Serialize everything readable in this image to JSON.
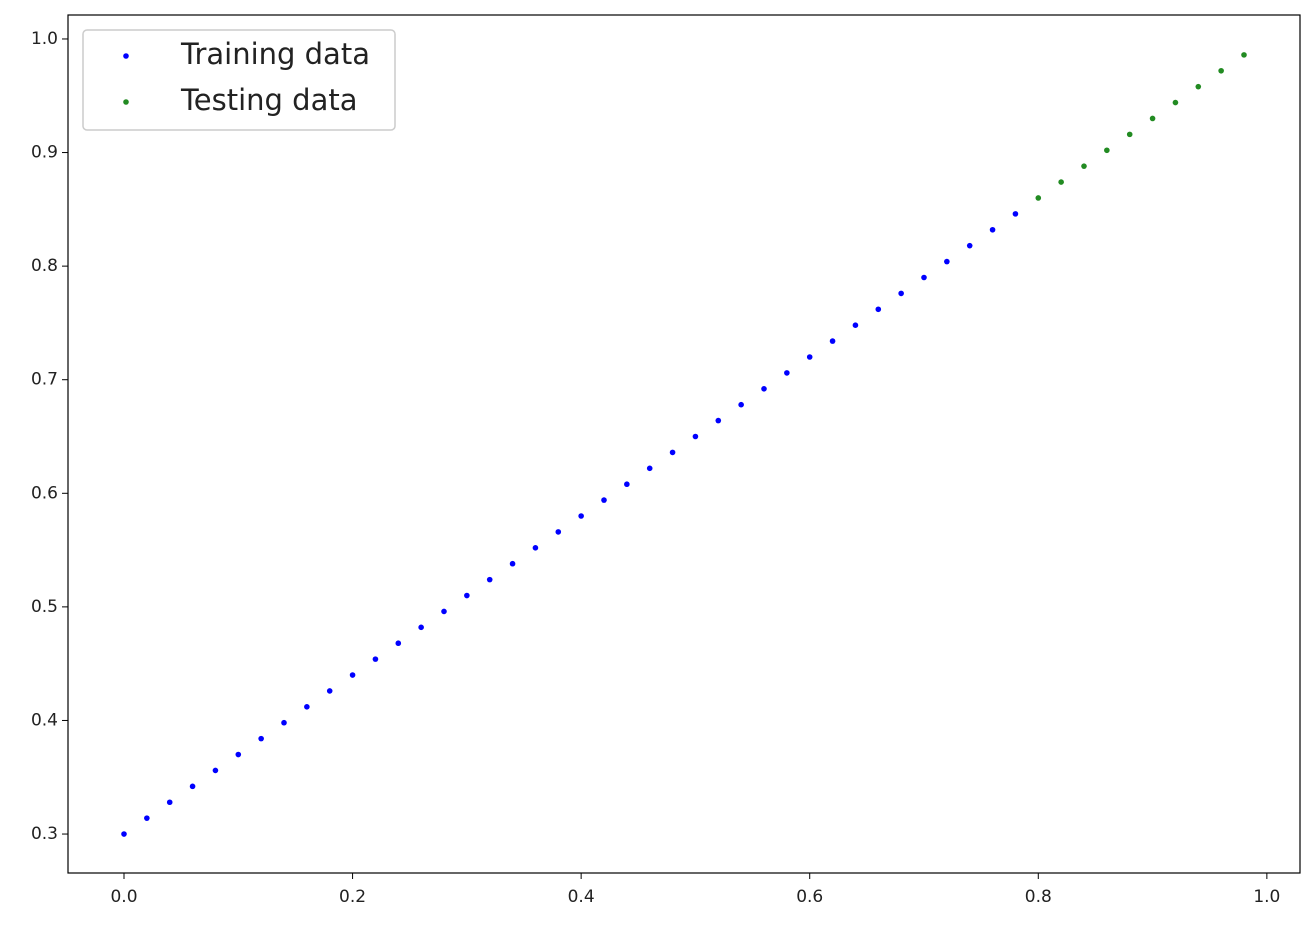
{
  "chart_data": {
    "type": "scatter",
    "series": [
      {
        "name": "Training data",
        "color": "#0000ff",
        "x": [
          0,
          0.02,
          0.04,
          0.06,
          0.08,
          0.1,
          0.12,
          0.14,
          0.16,
          0.18,
          0.2,
          0.22,
          0.24,
          0.26,
          0.28,
          0.3,
          0.32,
          0.34,
          0.36,
          0.38,
          0.4,
          0.42,
          0.44,
          0.46,
          0.48,
          0.5,
          0.52,
          0.54,
          0.56,
          0.58,
          0.6,
          0.62,
          0.64,
          0.66,
          0.68,
          0.7,
          0.72,
          0.74,
          0.76,
          0.78
        ],
        "values": [
          0.3,
          0.314,
          0.328,
          0.342,
          0.356,
          0.37,
          0.384,
          0.398,
          0.412,
          0.426,
          0.44,
          0.454,
          0.468,
          0.482,
          0.496,
          0.51,
          0.524,
          0.538,
          0.552,
          0.566,
          0.58,
          0.594,
          0.608,
          0.622,
          0.636,
          0.65,
          0.664,
          0.678,
          0.692,
          0.706,
          0.72,
          0.734,
          0.748,
          0.762,
          0.776,
          0.79,
          0.804,
          0.818,
          0.832,
          0.846
        ]
      },
      {
        "name": "Testing data",
        "color": "#228b22",
        "x": [
          0.8,
          0.82,
          0.84,
          0.86,
          0.88,
          0.9,
          0.92,
          0.94,
          0.96,
          0.98
        ],
        "values": [
          0.86,
          0.874,
          0.888,
          0.902,
          0.916,
          0.93,
          0.944,
          0.958,
          0.972,
          0.986
        ]
      }
    ],
    "xlim": [
      -0.049,
      1.029
    ],
    "xticks": [
      {
        "value": 0,
        "label": "0.0"
      },
      0.2,
      0.4,
      0.6,
      0.8,
      {
        "value": 1,
        "label": "1.0"
      }
    ],
    "ylim": [
      0.2657,
      1.0211
    ],
    "yticks": [
      0.3,
      0.4,
      0.5,
      0.6,
      0.7,
      0.8,
      0.9,
      {
        "value": 1,
        "label": "1.0"
      }
    ],
    "legend": "upper left",
    "grid": false
  }
}
